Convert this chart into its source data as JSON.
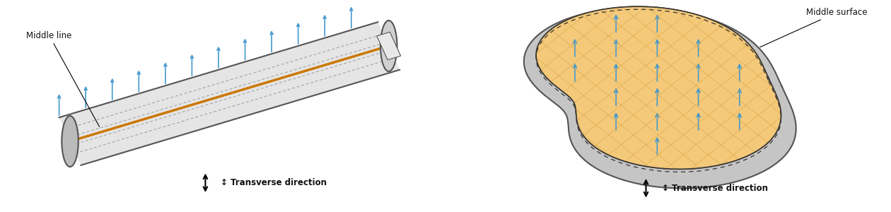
{
  "bg_color": "#ffffff",
  "arrow_color": "#4499cc",
  "tube_fill_body": "#e5e5e5",
  "tube_fill_end": "#cccccc",
  "tube_edge": "#555555",
  "tube_dashed": "#999999",
  "orange_color": "#cc7700",
  "plate_fill": "#f5c97a",
  "plate_outer": "#c8c8c8",
  "plate_edge": "#555555",
  "hatch_color": "#d4a843",
  "text_color": "#111111",
  "label_middle_line": "Middle line",
  "label_middle_surface": "Middle surface",
  "label_transverse": "↕ Transverse direction"
}
